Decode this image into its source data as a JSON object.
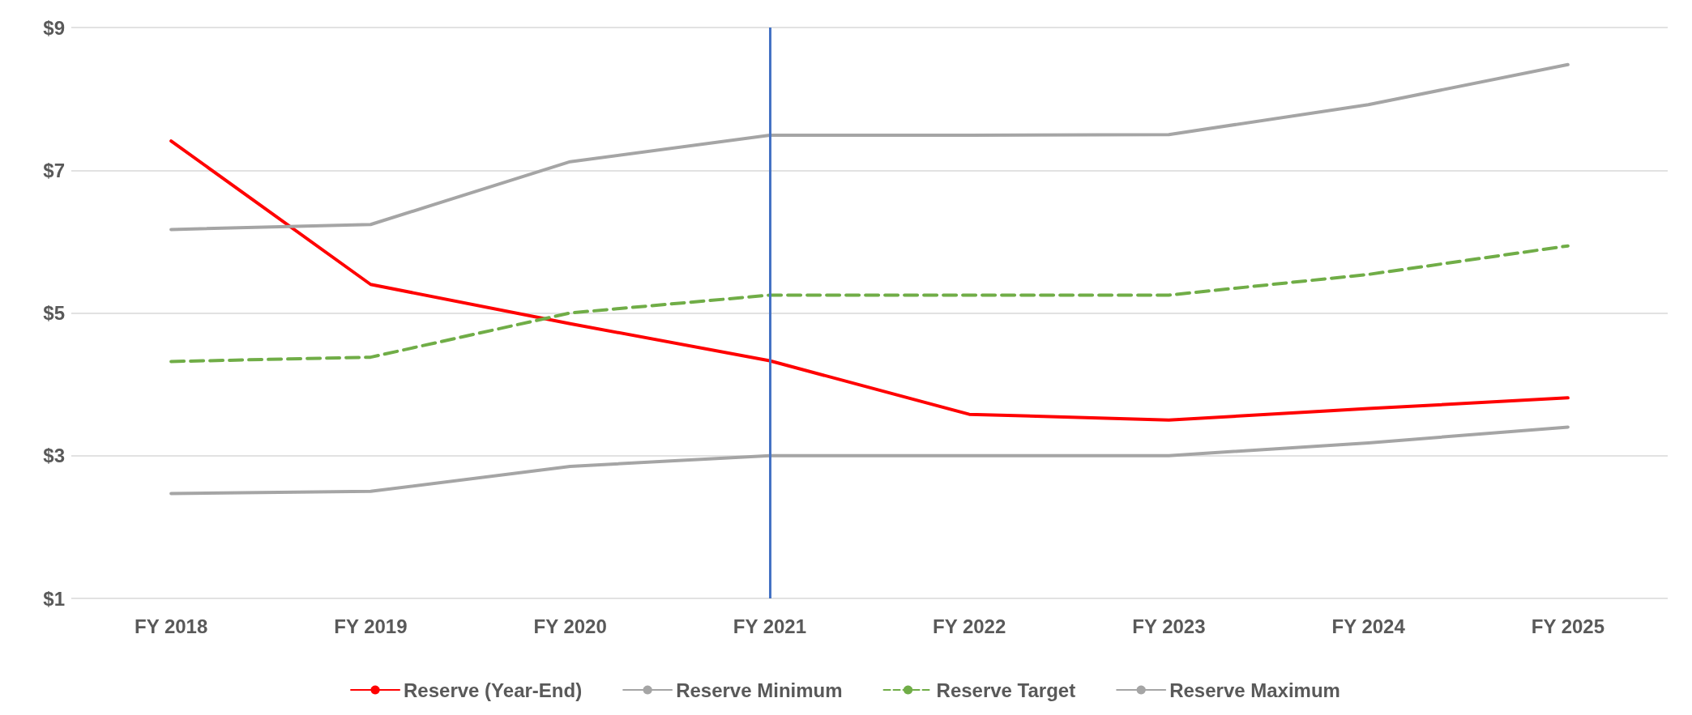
{
  "chart_data": {
    "type": "line",
    "categories": [
      "FY 2018",
      "FY 2019",
      "FY 2020",
      "FY 2021",
      "FY 2022",
      "FY 2023",
      "FY 2024",
      "FY 2025"
    ],
    "series": [
      {
        "name": "Reserve (Year-End)",
        "color": "#ff0000",
        "values": [
          7.41,
          5.4,
          4.85,
          4.33,
          3.58,
          3.5,
          3.66,
          3.81
        ]
      },
      {
        "name": "Reserve Minimum",
        "color": "#a5a5a5",
        "values": [
          2.47,
          2.5,
          2.85,
          3.0,
          3.0,
          3.0,
          3.18,
          3.4
        ]
      },
      {
        "name": "Reserve Target",
        "color": "#70ad47",
        "line_style": "dashed",
        "values": [
          4.32,
          4.38,
          5.0,
          5.25,
          5.25,
          5.25,
          5.54,
          5.94
        ]
      },
      {
        "name": "Reserve Maximum",
        "color": "#a5a5a5",
        "values": [
          6.17,
          6.24,
          7.12,
          7.49,
          7.49,
          7.5,
          7.92,
          8.48
        ]
      }
    ],
    "ylim": [
      1,
      9
    ],
    "yticks": [
      {
        "value": 1,
        "label": "$1"
      },
      {
        "value": 3,
        "label": "$3"
      },
      {
        "value": 5,
        "label": "$5"
      },
      {
        "value": 7,
        "label": "$7"
      },
      {
        "value": 9,
        "label": "$9"
      }
    ],
    "ref_lines": [
      {
        "axis": "x",
        "value": "FY 2021",
        "color": "#4472c4"
      }
    ],
    "grid": "y",
    "legend": "bottom",
    "marker": "none",
    "line_style": "solid"
  }
}
